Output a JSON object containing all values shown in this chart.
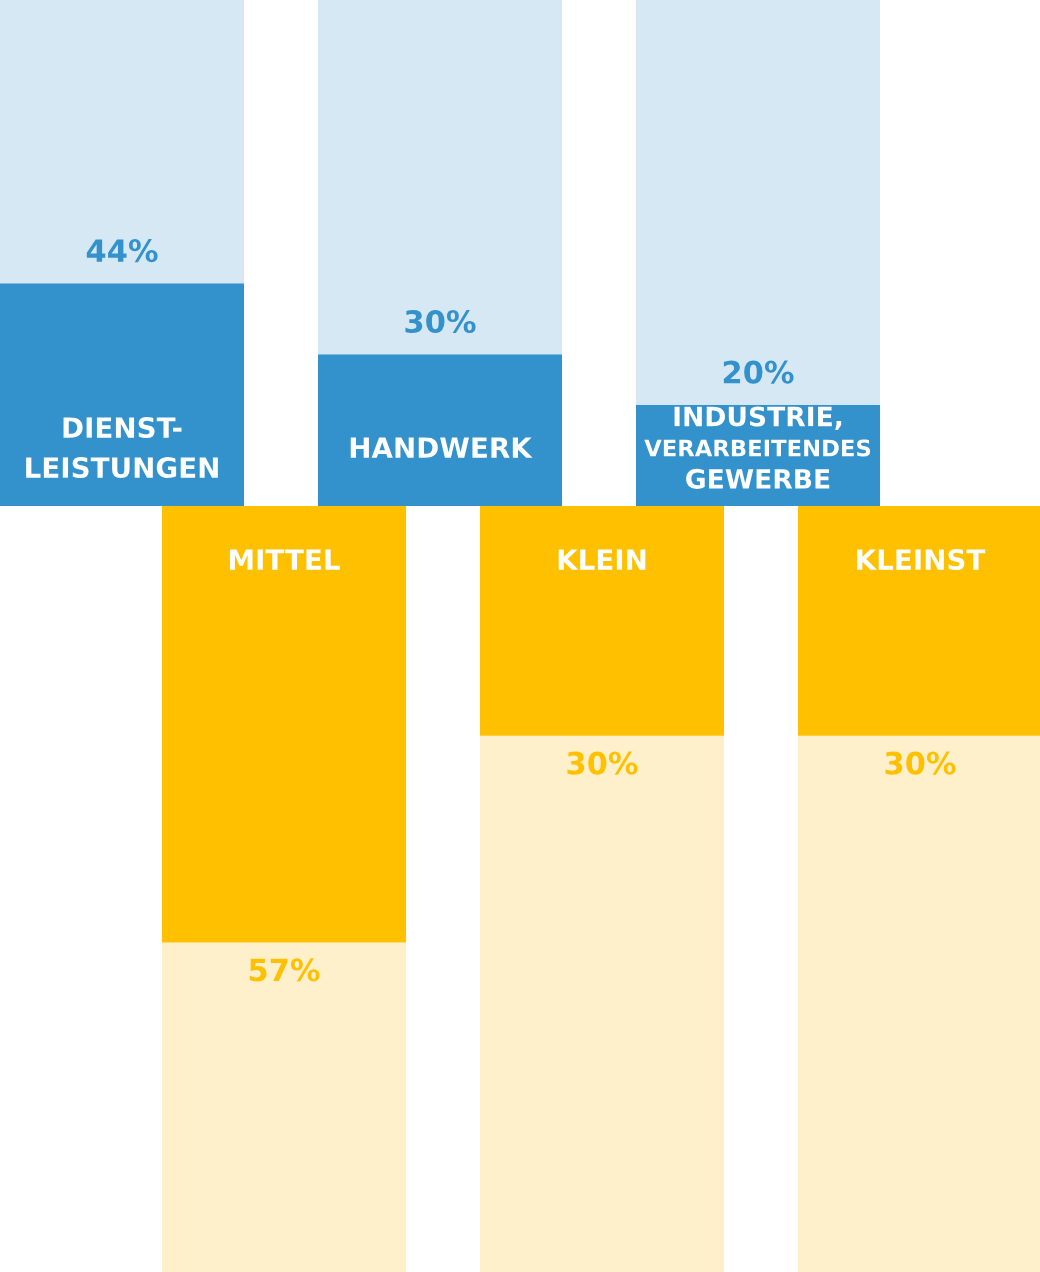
{
  "chart_data": [
    {
      "type": "bar",
      "categories": [
        "DIENST-\nLEISTUNGEN",
        "HANDWERK",
        "INDUSTRIE,\nVERARBEITENDES\nGEWERBE"
      ],
      "stacked": true,
      "ylim": [
        0,
        100
      ],
      "tick_labels": "x",
      "series": [
        {
          "color": "#3391cc",
          "values": [
            44,
            30,
            20
          ],
          "value_labels": [
            "44%",
            "30%",
            "20%"
          ]
        },
        {
          "color": "#d6e8f4",
          "values": [
            56,
            70,
            80
          ]
        }
      ]
    },
    {
      "type": "bar",
      "categories": [
        "MITTEL",
        "KLEIN",
        "KLEINST"
      ],
      "stacked": true,
      "ylim": [
        0,
        100
      ],
      "tick_labels": "x",
      "series": [
        {
          "color": "#fff0cc",
          "values": [
            43,
            70,
            70
          ]
        },
        {
          "color": "#ffc000",
          "values": [
            57,
            30,
            30
          ],
          "value_labels": [
            "57%",
            "30%",
            "30%"
          ]
        }
      ]
    }
  ]
}
